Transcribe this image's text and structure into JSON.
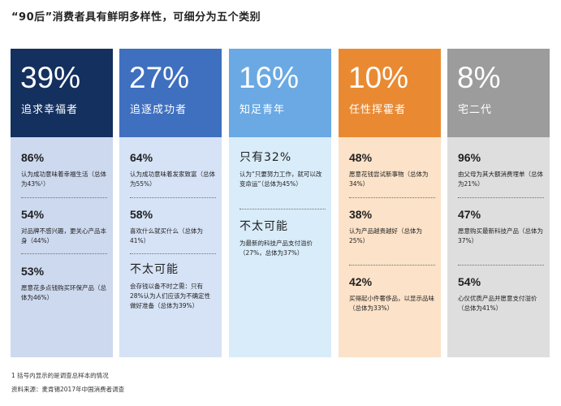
{
  "title": "“90后”消费者具有鲜明多样性，可细分为五个类别",
  "colors": {
    "col1_head": "#14305f",
    "col1_body": "#cdd9ef",
    "col2_head": "#3f6fbf",
    "col2_body": "#d6e3f6",
    "col3_head": "#6aa9e3",
    "col3_body": "#d9ecfa",
    "col4_head": "#e98a33",
    "col4_body": "#fbe2c8",
    "col5_head": "#9c9c9c",
    "col5_body": "#dedede"
  },
  "columns": [
    {
      "percent": "39%",
      "label": "追求幸福者",
      "stats": [
        {
          "value": "86%",
          "desc": "认为成功意味着幸福生活（总体为43%¹）"
        },
        {
          "value": "54%",
          "desc": "对品牌不感兴趣，更关心产品本身（44%）"
        },
        {
          "value": "53%",
          "desc": "愿意花多点钱购买环保产品（总体为46%）"
        }
      ]
    },
    {
      "percent": "27%",
      "label": "追逐成功者",
      "stats": [
        {
          "value": "64%",
          "desc": "认为成功意味着发家致富（总体为55%）"
        },
        {
          "value": "58%",
          "desc": "喜欢什么就买什么（总体为41%）"
        },
        {
          "value": "不太可能",
          "desc": "会存钱以备不时之需：只有28%认为人们应该为不确定性做好准备（总体为39%）"
        }
      ]
    },
    {
      "percent": "16%",
      "label": "知足青年",
      "stats": [
        {
          "value": "只有32%",
          "desc": "认为“只要努力工作，就可以改变命运”（总体为45%）"
        },
        {
          "value": "不太可能",
          "desc": "为最新的科技产品支付溢价（27%，总体为37%）"
        }
      ]
    },
    {
      "percent": "10%",
      "label": "任性挥霍者",
      "stats": [
        {
          "value": "48%",
          "desc": "愿意花钱尝试新事物（总体为34%）"
        },
        {
          "value": "38%",
          "desc": "认为产品越贵越好（总体为25%）"
        },
        {
          "value": "42%",
          "desc": "买得起小件奢侈品，以显示品味（总体为33%）"
        }
      ]
    },
    {
      "percent": "8%",
      "label": "宅二代",
      "stats": [
        {
          "value": "96%",
          "desc": "由父母为其大额消费埋单（总体为21%）"
        },
        {
          "value": "47%",
          "desc": "愿意购买最新科技产品（总体为37%）"
        },
        {
          "value": "54%",
          "desc": "心仪优质产品并愿意支付溢价（总体为41%）"
        }
      ]
    }
  ],
  "footnote": "1  括号内显示的是调查总样本的情况",
  "source": "资料来源：麦肯锡2017年中国消费者调查"
}
